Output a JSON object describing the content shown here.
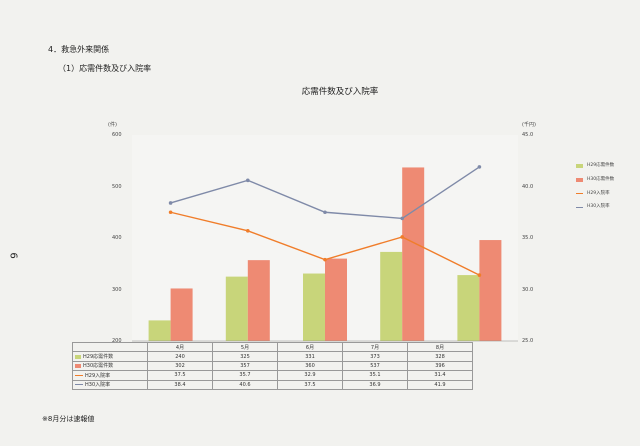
{
  "header": {
    "section": "4．救急外来関係",
    "subsection": "（1）応需件数及び入院率",
    "page_number": "6"
  },
  "footer": {
    "note": "※8月分は速報値"
  },
  "chart_data": {
    "type": "bar",
    "title": "応需件数及び入院率",
    "categories": [
      "4月",
      "5月",
      "6月",
      "7月",
      "8月"
    ],
    "left_unit": "(件)",
    "right_unit": "(千円)",
    "left_axis": {
      "ylim": [
        200,
        600
      ],
      "ticks": [
        "600",
        "500",
        "400",
        "300",
        "200"
      ]
    },
    "right_axis": {
      "ylim": [
        25.0,
        45.0
      ],
      "ticks": [
        "45.0",
        "40.0",
        "35.0",
        "30.0",
        "25.0"
      ]
    },
    "series": [
      {
        "name": "H29応需件数",
        "kind": "bar",
        "axis": "left",
        "color": "#c8d57a",
        "values": [
          240,
          325,
          331,
          373,
          328
        ],
        "labels": [
          "240",
          "325",
          "331",
          "373",
          "328"
        ]
      },
      {
        "name": "H30応需件数",
        "kind": "bar",
        "axis": "left",
        "color": "#ee8a73",
        "values": [
          302,
          357,
          360,
          537,
          396
        ],
        "labels": [
          "302",
          "357",
          "360",
          "537",
          "396"
        ]
      },
      {
        "name": "H29入院率",
        "kind": "line",
        "axis": "right",
        "color": "#f07d2a",
        "values": [
          37.5,
          35.7,
          32.9,
          35.1,
          31.4
        ],
        "labels": [
          "37.5",
          "35.7",
          "32.9",
          "35.1",
          "31.4"
        ]
      },
      {
        "name": "H30入院率",
        "kind": "line",
        "axis": "right",
        "color": "#7f8aa8",
        "values": [
          38.4,
          40.6,
          37.5,
          36.9,
          41.9
        ],
        "labels": [
          "38.4",
          "40.6",
          "37.5",
          "36.9",
          "41.9"
        ]
      }
    ],
    "legend_position": "right",
    "grid": false
  }
}
